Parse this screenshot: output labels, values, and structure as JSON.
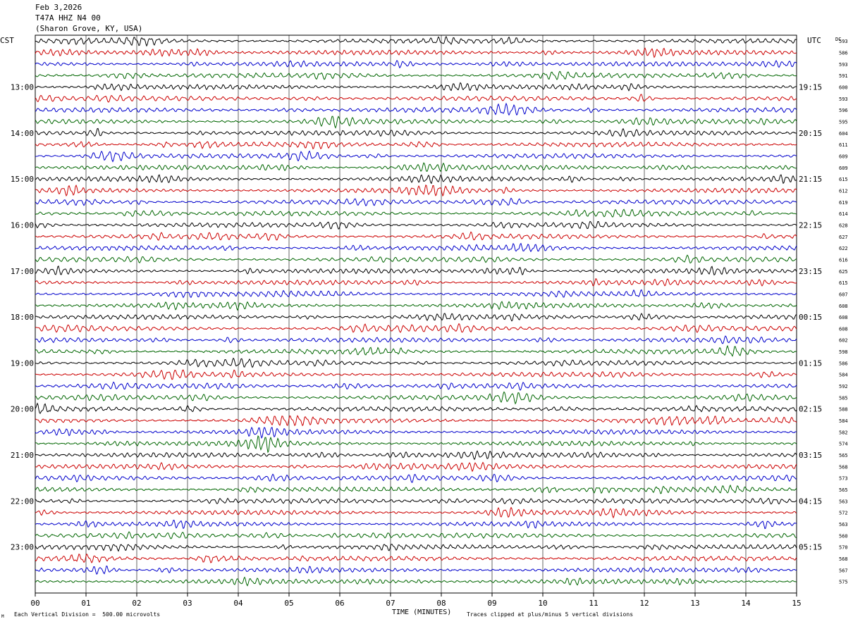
{
  "header": {
    "date": "Feb 3,2026",
    "station": "T47A HHZ N4 00",
    "location": "(Sharon Grove, KY, USA)"
  },
  "labels": {
    "left_tz": "CST",
    "right_tz": "UTC",
    "dc_header": "DC",
    "x_axis_title": "TIME (MINUTES)",
    "scale_note": "Each Vertical Division =  500.00 microvolts",
    "clip_note": "Traces clipped at plus/minus 5 vertical divisions",
    "corner_mark": "M"
  },
  "colors": {
    "trace_cycle": [
      "#000000",
      "#cc0000",
      "#0000cc",
      "#006600"
    ],
    "grid": "#000000"
  },
  "chart_data": {
    "type": "line",
    "subtype": "helicorder",
    "x_ticks": [
      "00",
      "01",
      "02",
      "03",
      "04",
      "05",
      "06",
      "07",
      "08",
      "09",
      "10",
      "11",
      "12",
      "13",
      "14",
      "15"
    ],
    "xlim": [
      0,
      15
    ],
    "xlabel": "TIME (MINUTES)",
    "trace_minutes": 15,
    "first_row_cst_hour": 12,
    "left_hour_labels": [
      "13:00",
      "14:00",
      "15:00",
      "16:00",
      "17:00",
      "18:00",
      "19:00",
      "20:00",
      "21:00",
      "22:00",
      "23:00"
    ],
    "right_hour_labels": [
      "19:15",
      "20:15",
      "21:15",
      "22:15",
      "23:15",
      "00:15",
      "01:15",
      "02:15",
      "03:15",
      "04:15",
      "05:15"
    ],
    "dc_offsets": [
      593,
      586,
      593,
      591,
      600,
      593,
      596,
      595,
      604,
      611,
      609,
      609,
      615,
      612,
      619,
      614,
      628,
      627,
      622,
      616,
      625,
      615,
      607,
      608,
      608,
      608,
      602,
      598,
      586,
      584,
      592,
      585,
      588,
      584,
      582,
      574,
      565,
      568,
      573,
      565,
      563,
      572,
      563,
      560,
      570,
      568,
      567,
      575
    ]
  }
}
